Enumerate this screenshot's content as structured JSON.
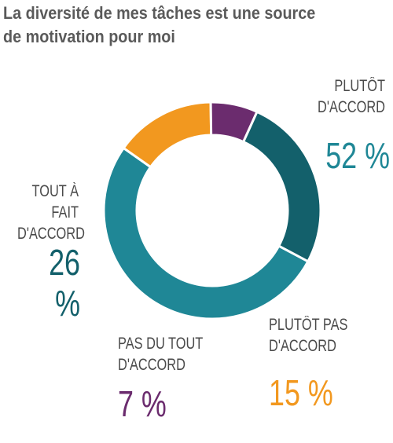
{
  "title_lines": [
    "La diversité de mes tâches est une source",
    "de motivation pour moi"
  ],
  "chart_data": {
    "type": "pie",
    "variant": "donut",
    "title": "La diversité de mes tâches est une source de motivation pour moi",
    "legend": "none",
    "slices": [
      {
        "label_lines": [
          "PLUTÔT",
          "D'ACCORD"
        ],
        "label": "PLUTÔT D'ACCORD",
        "value": 52,
        "value_label": "52 %",
        "color": "#1f8796"
      },
      {
        "label_lines": [
          "PLUTÔT PAS",
          "D'ACCORD"
        ],
        "label": "PLUTÔT PAS D'ACCORD",
        "value": 15,
        "value_label": "15 %",
        "color": "#f2981f"
      },
      {
        "label_lines": [
          "PAS DU TOUT",
          "D'ACCORD"
        ],
        "label": "PAS DU TOUT D'ACCORD",
        "value": 7,
        "value_label": "7 %",
        "color": "#6b2c6e"
      },
      {
        "label_lines": [
          "TOUT À FAIT",
          "D'ACCORD"
        ],
        "label": "TOUT À FAIT D'ACCORD",
        "value": 26,
        "value_label": "26 %",
        "color": "#13606b"
      }
    ]
  }
}
